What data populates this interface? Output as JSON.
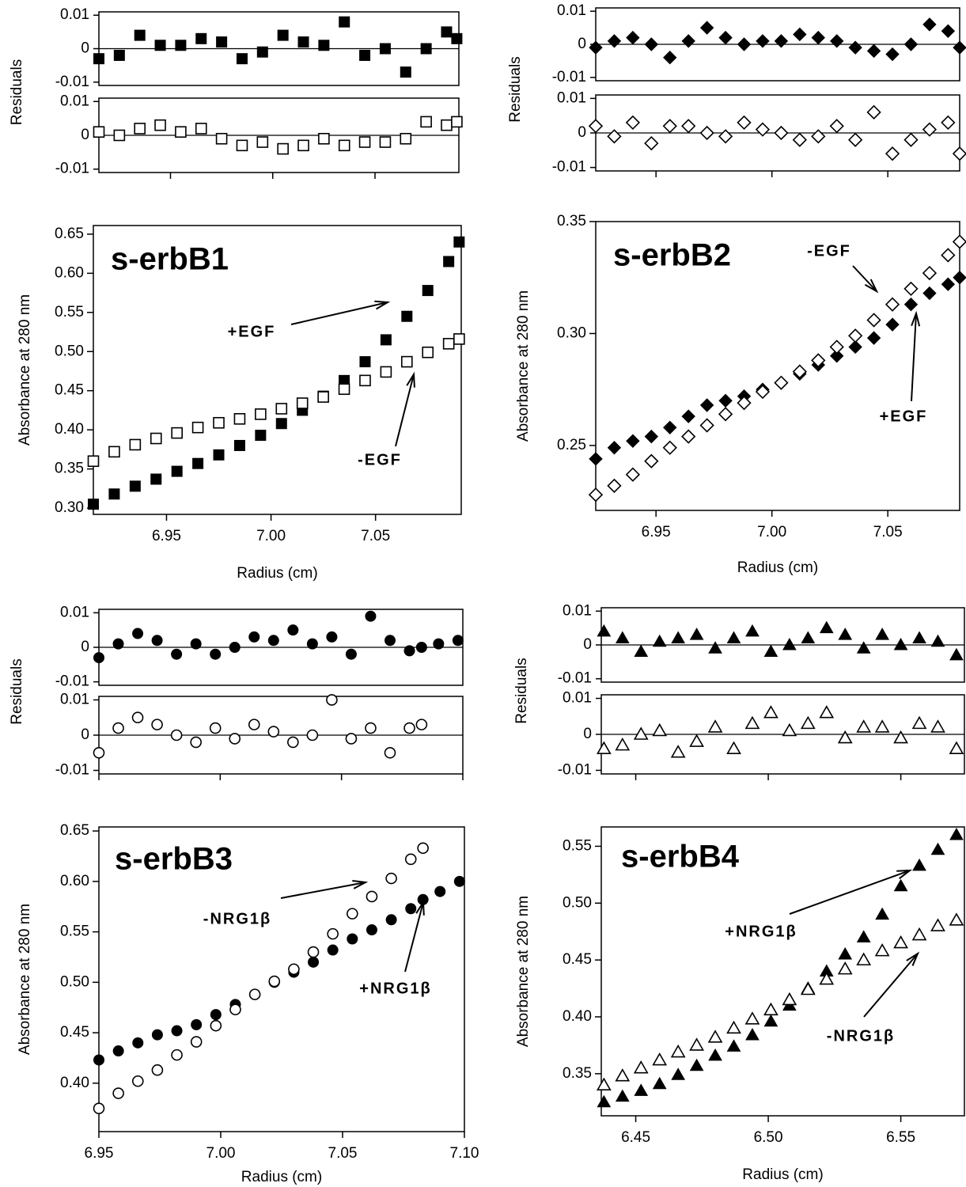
{
  "chart_data": [
    {
      "type": "scatter",
      "title": "s-erbB1",
      "x": [
        6.915,
        6.925,
        6.935,
        6.945,
        6.955,
        6.965,
        6.975,
        6.985,
        6.995,
        7.005,
        7.015,
        7.025,
        7.035,
        7.045,
        7.055,
        7.065,
        7.075,
        7.085,
        7.09
      ],
      "xlim": [
        6.915,
        7.091
      ],
      "xticks": [
        6.95,
        {
          "value": 7,
          "label": "7.00"
        },
        7.05
      ],
      "xlabel": "Radius (cm)",
      "ylabel": "Absorbance at 280 nm",
      "ylim": [
        0.292,
        0.661
      ],
      "yticks": [
        {
          "value": 0.3,
          "label": "0.30"
        },
        0.35,
        {
          "value": 0.4,
          "label": "0.40"
        },
        0.45,
        {
          "value": 0.5,
          "label": "0.50"
        },
        0.55,
        {
          "value": 0.6,
          "label": "0.60"
        },
        0.65
      ],
      "residual_label": "Residuals",
      "residual_ylim": [
        -0.011,
        0.011
      ],
      "residual_yticks": [
        0.01,
        0,
        -0.01
      ],
      "residual_zero_line": true,
      "series": [
        {
          "name": "+EGF",
          "marker": "square",
          "filled": true,
          "color": "#000000",
          "values": [
            0.305,
            0.318,
            0.328,
            0.337,
            0.347,
            0.357,
            0.368,
            0.38,
            0.393,
            0.408,
            0.425,
            0.443,
            0.463,
            0.487,
            0.515,
            0.545,
            0.578,
            0.615,
            0.64
          ],
          "residuals": [
            -0.003,
            -0.002,
            0.004,
            0.001,
            0.001,
            0.003,
            0.002,
            -0.003,
            -0.001,
            0.004,
            0.002,
            0.001,
            0.008,
            -0.002,
            0,
            -0.007,
            0,
            0.005,
            0.003
          ]
        },
        {
          "name": "-EGF",
          "marker": "square",
          "filled": false,
          "color": "#000000",
          "values": [
            0.36,
            0.372,
            0.381,
            0.389,
            0.396,
            0.403,
            0.409,
            0.414,
            0.42,
            0.427,
            0.434,
            0.442,
            0.452,
            0.463,
            0.474,
            0.487,
            0.499,
            0.51,
            0.516
          ],
          "residuals": [
            0.001,
            0,
            0.002,
            0.003,
            0.001,
            0.002,
            -0.001,
            -0.003,
            -0.002,
            -0.004,
            -0.003,
            -0.001,
            -0.003,
            -0.002,
            -0.002,
            -0.001,
            0.004,
            0.003,
            0.004
          ]
        }
      ]
    },
    {
      "type": "scatter",
      "title": "s-erbB2",
      "x": [
        6.924,
        6.932,
        6.94,
        6.948,
        6.956,
        6.964,
        6.972,
        6.98,
        6.988,
        6.996,
        7.004,
        7.012,
        7.02,
        7.028,
        7.036,
        7.044,
        7.052,
        7.06,
        7.068,
        7.076,
        7.081
      ],
      "xlim": [
        6.924,
        7.081
      ],
      "xticks": [
        6.95,
        {
          "value": 7,
          "label": "7.00"
        },
        7.05
      ],
      "xlabel": "Radius (cm)",
      "ylabel": "Absorbance at 280 nm",
      "ylim": [
        0.221,
        0.35
      ],
      "yticks": [
        0.25,
        {
          "value": 0.3,
          "label": "0.30"
        },
        0.35
      ],
      "residual_label": "Residuals",
      "residual_ylim": [
        -0.011,
        0.011
      ],
      "residual_yticks": [
        0.01,
        0,
        -0.01
      ],
      "residual_zero_line": true,
      "series": [
        {
          "name": "+EGF",
          "marker": "diamond",
          "filled": true,
          "color": "#000000",
          "values": [
            0.244,
            0.249,
            0.252,
            0.254,
            0.258,
            0.263,
            0.268,
            0.27,
            0.272,
            0.275,
            0.278,
            0.282,
            0.286,
            0.29,
            0.294,
            0.298,
            0.304,
            0.313,
            0.318,
            0.322,
            0.325
          ],
          "residuals": [
            -0.001,
            0.001,
            0.002,
            0,
            -0.004,
            0.001,
            0.005,
            0.002,
            0,
            0.001,
            0.001,
            0.003,
            0.002,
            0.001,
            -0.001,
            -0.002,
            -0.003,
            0,
            0.006,
            0.004,
            -0.001
          ]
        },
        {
          "name": "-EGF",
          "marker": "diamond",
          "filled": false,
          "color": "#000000",
          "values": [
            0.228,
            0.232,
            0.237,
            0.243,
            0.249,
            0.254,
            0.259,
            0.264,
            0.269,
            0.274,
            0.278,
            0.283,
            0.288,
            0.294,
            0.299,
            0.306,
            0.313,
            0.32,
            0.327,
            0.335,
            0.341
          ],
          "residuals": [
            0.002,
            -0.001,
            0.003,
            -0.003,
            0.002,
            0.002,
            0,
            -0.001,
            0.003,
            0.001,
            0,
            -0.002,
            -0.001,
            0.002,
            -0.002,
            0.006,
            -0.006,
            -0.002,
            0.001,
            0.003,
            -0.006
          ]
        }
      ]
    },
    {
      "type": "scatter",
      "title": "s-erbB3",
      "x": [
        6.95,
        6.958,
        6.966,
        6.974,
        6.982,
        6.99,
        6.998,
        7.006,
        7.014,
        7.022,
        7.03,
        7.038,
        7.046,
        7.054,
        7.062,
        7.07,
        7.078,
        7.083,
        7.09,
        7.098
      ],
      "xlim": [
        6.95,
        7.1
      ],
      "xticks": [
        6.95,
        {
          "value": 7,
          "label": "7.00"
        },
        7.05,
        {
          "value": 7.1,
          "label": "7.10"
        }
      ],
      "xlabel": "Radius (cm)",
      "ylabel": "Absorbance at 280 nm",
      "ylim": [
        0.352,
        0.654
      ],
      "yticks": [
        {
          "value": 0.4,
          "label": "0.40"
        },
        0.45,
        {
          "value": 0.5,
          "label": "0.50"
        },
        0.55,
        {
          "value": 0.6,
          "label": "0.60"
        },
        0.65
      ],
      "residual_label": "Residuals",
      "residual_ylim": [
        -0.011,
        0.011
      ],
      "residual_yticks": [
        0.01,
        0,
        -0.01
      ],
      "residual_zero_line": true,
      "series": [
        {
          "name": "+NRG1β",
          "marker": "circle",
          "filled": true,
          "color": "#000000",
          "values": [
            0.423,
            0.432,
            0.44,
            0.448,
            0.452,
            0.458,
            0.468,
            0.478,
            0.488,
            0.5,
            0.51,
            0.52,
            0.532,
            0.543,
            0.552,
            0.562,
            0.573,
            0.582,
            0.59,
            0.6
          ],
          "residuals": [
            -0.003,
            0.001,
            0.004,
            0.002,
            -0.002,
            0.001,
            -0.002,
            0,
            0.003,
            0.002,
            0.005,
            0.001,
            0.003,
            -0.002,
            0.009,
            0.002,
            -0.001,
            0,
            0.001,
            0.002
          ]
        },
        {
          "name": "-NRG1β",
          "marker": "circle",
          "filled": false,
          "color": "#000000",
          "values": [
            0.375,
            0.39,
            0.402,
            0.413,
            0.428,
            0.441,
            0.457,
            0.473,
            0.488,
            0.501,
            0.513,
            0.53,
            0.548,
            0.568,
            0.585,
            0.603,
            0.622,
            0.633,
            null,
            null
          ],
          "residuals": [
            -0.005,
            0.002,
            0.005,
            0.003,
            0,
            -0.002,
            0.002,
            -0.001,
            0.003,
            0.001,
            -0.002,
            0,
            0.01,
            -0.001,
            0.002,
            -0.005,
            0.002,
            0.003,
            null,
            null
          ]
        }
      ]
    },
    {
      "type": "scatter",
      "title": "s-erbB4",
      "x": [
        6.438,
        6.445,
        6.452,
        6.459,
        6.466,
        6.473,
        6.48,
        6.487,
        6.494,
        6.501,
        6.508,
        6.515,
        6.522,
        6.529,
        6.536,
        6.543,
        6.55,
        6.557,
        6.564,
        6.571
      ],
      "xlim": [
        6.437,
        6.574
      ],
      "xticks": [
        6.45,
        {
          "value": 6.5,
          "label": "6.50"
        },
        6.55
      ],
      "xlabel": "Radius (cm)",
      "ylabel": "Absorbance at 280 nm",
      "ylim": [
        0.313,
        0.567
      ],
      "yticks": [
        0.35,
        {
          "value": 0.4,
          "label": "0.40"
        },
        0.45,
        {
          "value": 0.5,
          "label": "0.50"
        },
        0.55
      ],
      "residual_label": "Residuals",
      "residual_ylim": [
        -0.011,
        0.011
      ],
      "residual_yticks": [
        0.01,
        0,
        -0.01
      ],
      "residual_zero_line": true,
      "series": [
        {
          "name": "+NRG1β",
          "marker": "triangle",
          "filled": true,
          "color": "#000000",
          "values": [
            0.325,
            0.33,
            0.335,
            0.341,
            0.349,
            0.357,
            0.366,
            0.374,
            0.384,
            0.396,
            0.41,
            0.425,
            0.44,
            0.455,
            0.47,
            0.49,
            0.515,
            0.533,
            0.547,
            0.56
          ],
          "residuals": [
            0.004,
            0.002,
            -0.002,
            0.001,
            0.002,
            0.003,
            -0.001,
            0.002,
            0.004,
            -0.002,
            0,
            0.002,
            0.005,
            0.003,
            -0.001,
            0.003,
            0,
            0.002,
            0.001,
            -0.003
          ]
        },
        {
          "name": "-NRG1β",
          "marker": "triangle",
          "filled": false,
          "color": "#000000",
          "values": [
            0.34,
            0.348,
            0.355,
            0.362,
            0.369,
            0.375,
            0.382,
            0.39,
            0.398,
            0.406,
            0.415,
            0.424,
            0.433,
            0.442,
            0.45,
            0.458,
            0.465,
            0.472,
            0.48,
            0.485
          ],
          "residuals": [
            -0.004,
            -0.003,
            0,
            0.001,
            -0.005,
            -0.002,
            0.002,
            -0.004,
            0.003,
            0.006,
            0.001,
            0.003,
            0.006,
            -0.001,
            0.002,
            0.002,
            -0.001,
            0.003,
            0.002,
            -0.004
          ]
        }
      ]
    }
  ]
}
